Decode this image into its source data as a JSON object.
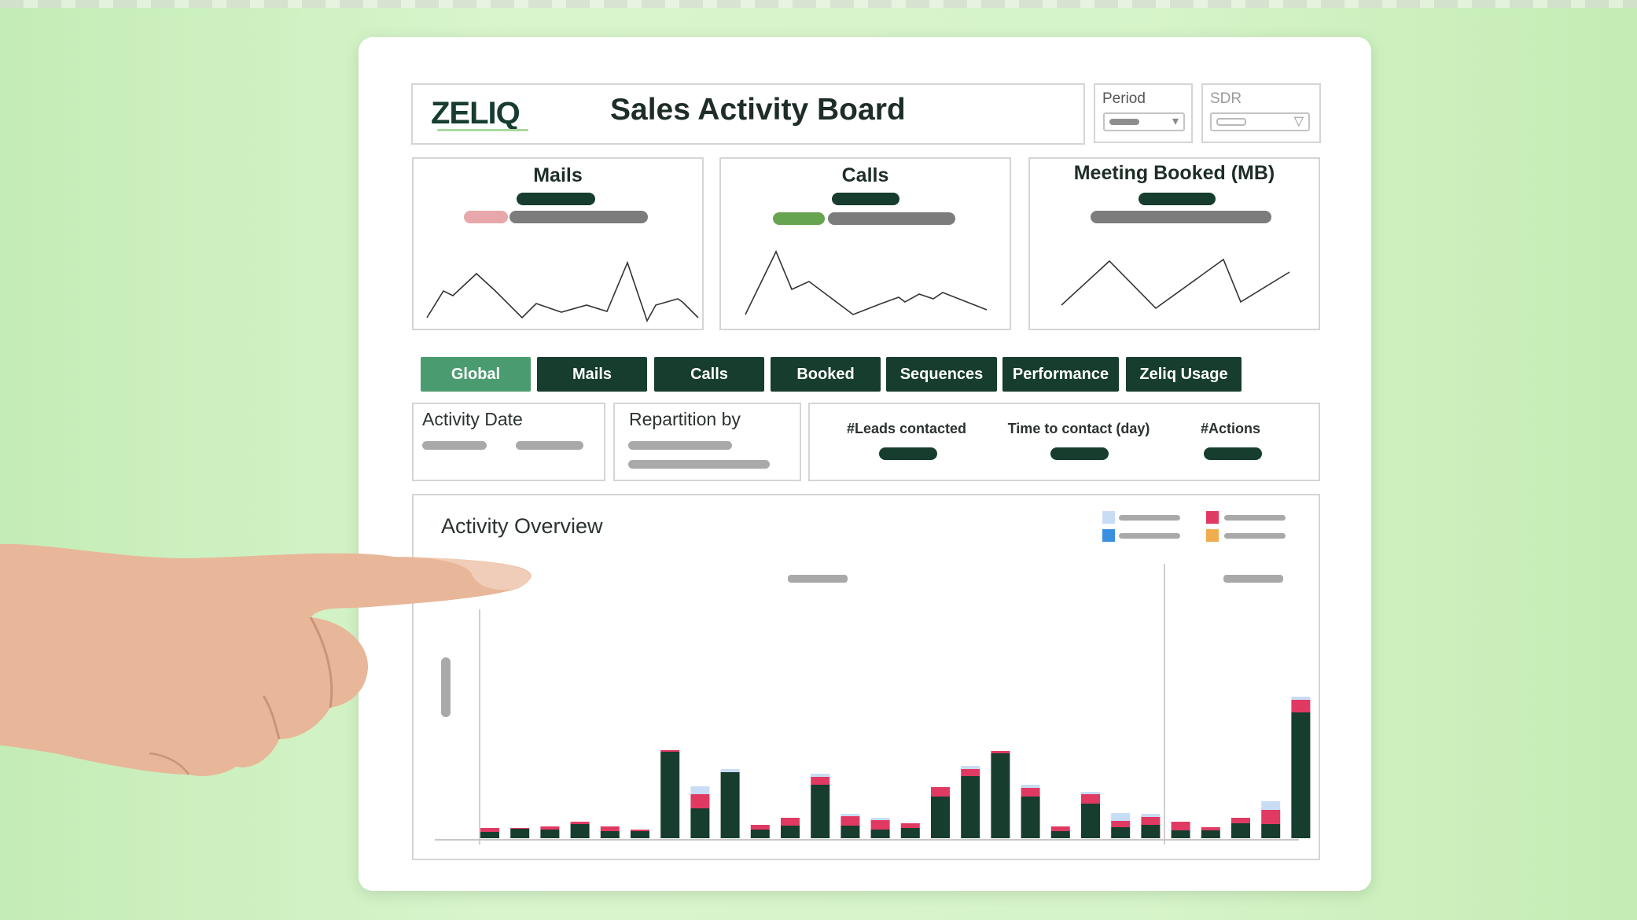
{
  "header": {
    "logo": "ZELIQ",
    "title": "Sales Activity Board",
    "filters": [
      {
        "label": "Period"
      },
      {
        "label": "SDR"
      }
    ]
  },
  "kpis": [
    {
      "title": "Mails"
    },
    {
      "title": "Calls"
    },
    {
      "title": "Meeting Booked (MB)"
    }
  ],
  "tabs": [
    "Global",
    "Mails",
    "Calls",
    "Booked",
    "Sequences",
    "Performance",
    "Zeliq Usage"
  ],
  "active_tab": "Global",
  "filters_row": {
    "activity_date": "Activity Date",
    "repartition_by": "Repartition by"
  },
  "metrics": [
    "#Leads contacted",
    "Time to contact (day)",
    "#Actions"
  ],
  "chart_title": "Activity Overview",
  "colors": {
    "dark_green": "#163d2e",
    "accent_green": "#4b9b70",
    "pink": "#e03a63",
    "light_blue": "#c8dcf4",
    "blue": "#3a8fe0",
    "orange": "#f0ad4e"
  },
  "chart_data": {
    "type": "bar",
    "stacked": true,
    "x": [
      1,
      2,
      3,
      4,
      5,
      6,
      7,
      8,
      9,
      10,
      11,
      12,
      13,
      14,
      15,
      16,
      17,
      18,
      19,
      20,
      21,
      22,
      23,
      24,
      25,
      26,
      27,
      28
    ],
    "series": [
      {
        "values": [
          8,
          12,
          11,
          18,
          9,
          9,
          110,
          38,
          84,
          11,
          16,
          68,
          16,
          11,
          13,
          53,
          79,
          108,
          53,
          9,
          44,
          14,
          17,
          10,
          10,
          19,
          18,
          160
        ]
      },
      {
        "values": [
          5,
          1,
          4,
          3,
          6,
          2,
          2,
          18,
          0,
          6,
          10,
          10,
          12,
          12,
          6,
          12,
          9,
          3,
          11,
          6,
          12,
          8,
          10,
          11,
          4,
          7,
          18,
          16
        ]
      },
      {
        "values": [
          0,
          0,
          0,
          0,
          0,
          0,
          0,
          10,
          4,
          0,
          0,
          4,
          3,
          3,
          0,
          0,
          4,
          0,
          4,
          0,
          3,
          10,
          4,
          0,
          0,
          0,
          11,
          4
        ]
      }
    ]
  }
}
